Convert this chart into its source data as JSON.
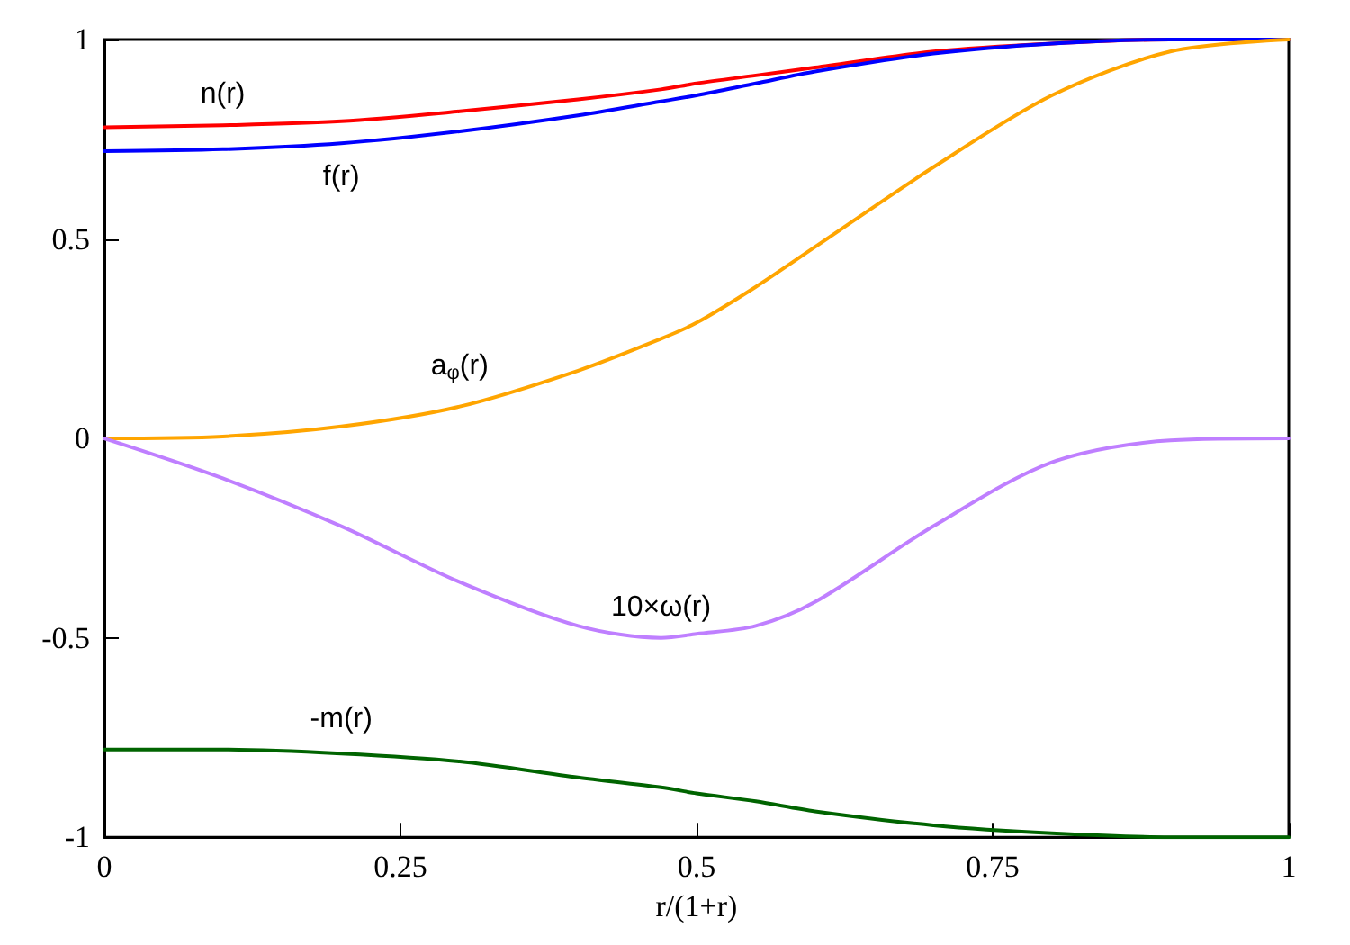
{
  "chart_data": {
    "type": "line",
    "xlabel": "r/(1+r)",
    "x": [
      0,
      0.1,
      0.2,
      0.3,
      0.4,
      0.47,
      0.5,
      0.55,
      0.6,
      0.7,
      0.8,
      0.9,
      1
    ],
    "series": [
      {
        "name": "n(r)",
        "color": "#ff0000",
        "values": [
          0.78,
          0.785,
          0.795,
          0.82,
          0.85,
          0.875,
          0.89,
          0.91,
          0.93,
          0.97,
          0.99,
          1,
          1
        ]
      },
      {
        "name": "f(r)",
        "color": "#0000ff",
        "values": [
          0.72,
          0.725,
          0.74,
          0.77,
          0.81,
          0.845,
          0.86,
          0.89,
          0.92,
          0.965,
          0.99,
          1,
          1
        ]
      },
      {
        "name": "a$_{φ}$(r)",
        "color": "#ffa500",
        "values": [
          0,
          0.005,
          0.03,
          0.08,
          0.17,
          0.25,
          0.29,
          0.38,
          0.48,
          0.68,
          0.86,
          0.97,
          1
        ]
      },
      {
        "name": "10×ω(r)",
        "color": "#bf7fff",
        "values": [
          0,
          -0.1,
          -0.22,
          -0.36,
          -0.47,
          -0.5,
          -0.49,
          -0.47,
          -0.41,
          -0.22,
          -0.06,
          -0.005,
          0
        ]
      },
      {
        "name": "-m(r)",
        "color": "#006400",
        "values": [
          -0.78,
          -0.78,
          -0.79,
          -0.81,
          -0.85,
          -0.875,
          -0.89,
          -0.91,
          -0.935,
          -0.97,
          -0.99,
          -1,
          -1
        ]
      }
    ],
    "xlim": [
      0,
      1
    ],
    "xticks": [
      0,
      0.25,
      0.5,
      0.75,
      1
    ],
    "ylim": [
      -1,
      1
    ],
    "yticks": [
      -1,
      -0.5,
      0,
      0.5,
      1
    ],
    "marker": "none",
    "line_style": "solid"
  }
}
